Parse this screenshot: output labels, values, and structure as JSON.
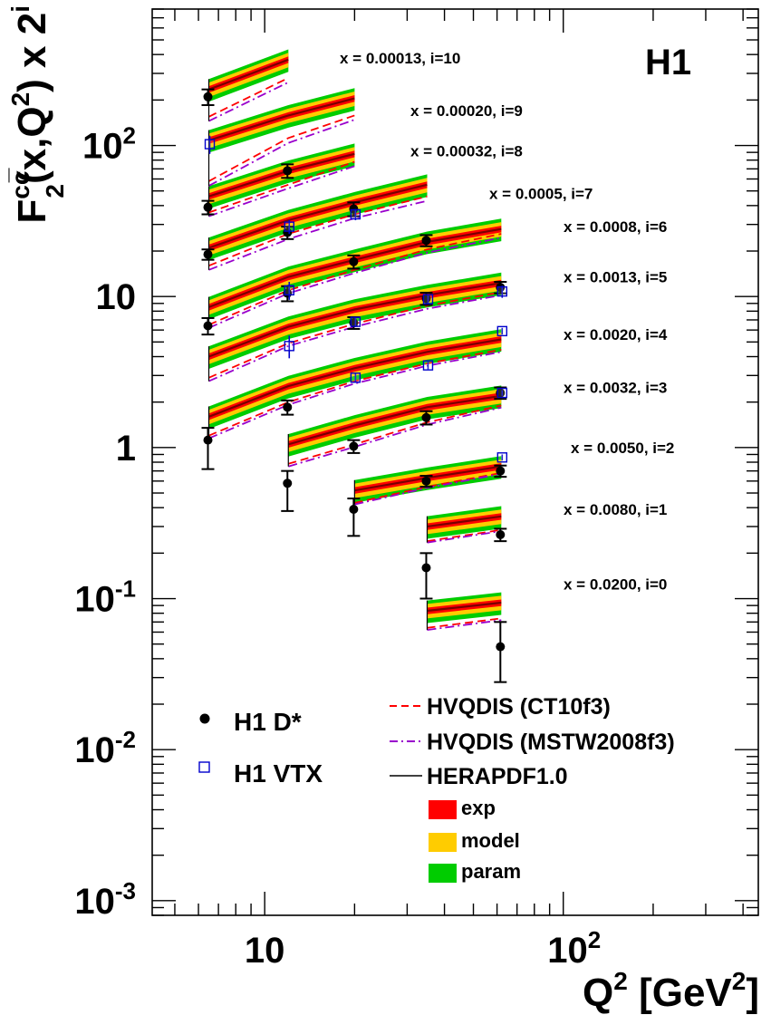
{
  "chart_data": {
    "type": "scatter",
    "label": "H1",
    "ylabel": {
      "main": "F",
      "sup": "cc̅",
      "sub": "2",
      "rest": "(x,Q",
      "sup2": "2",
      "rest2": ") x 2",
      "sup3": "i"
    },
    "xlabel": {
      "main": "Q",
      "sup": "2",
      "rest": " [GeV",
      "sup2": "2",
      "rest2": "]"
    },
    "xscale": "log",
    "yscale": "log",
    "xlim": [
      4.2,
      450
    ],
    "ylim": [
      0.0008,
      800
    ],
    "x_tick_labels": [
      {
        "value": 10,
        "base": "10",
        "exp": ""
      },
      {
        "value": 100,
        "base": "10",
        "exp": "2"
      }
    ],
    "y_tick_labels": [
      {
        "value": 0.001,
        "base": "10",
        "exp": "-3"
      },
      {
        "value": 0.01,
        "base": "10",
        "exp": "-2"
      },
      {
        "value": 0.1,
        "base": "10",
        "exp": "-1"
      },
      {
        "value": 1,
        "base": "1",
        "exp": ""
      },
      {
        "value": 10,
        "base": "10",
        "exp": ""
      },
      {
        "value": 100,
        "base": "10",
        "exp": "2"
      }
    ],
    "bins": [
      {
        "label": "x = 0.00013, i=10",
        "label_y": 380,
        "q2": [
          6.5,
          12
        ],
        "central": [
          235,
          370
        ],
        "exp_frac": 0.05,
        "model_frac": 0.11,
        "param_frac": 0.17,
        "ct10": [
          155,
          280
        ],
        "mstw": [
          145,
          262
        ]
      },
      {
        "label": "x = 0.00020, i=9",
        "label_y": 170,
        "q2": [
          6.5,
          12,
          20
        ],
        "central": [
          108,
          158,
          205
        ],
        "exp_frac": 0.05,
        "model_frac": 0.11,
        "param_frac": 0.17,
        "ct10": [
          58,
          112,
          158
        ],
        "mstw": [
          54,
          104,
          148
        ]
      },
      {
        "label": "x = 0.00032, i=8",
        "label_y": 92,
        "q2": [
          6.5,
          12,
          20
        ],
        "central": [
          46,
          68,
          88
        ],
        "exp_frac": 0.05,
        "model_frac": 0.11,
        "param_frac": 0.17,
        "ct10": [
          36,
          55,
          78
        ],
        "mstw": [
          34,
          52,
          73
        ]
      },
      {
        "label": "x = 0.0005, i=7",
        "label_y": 48,
        "q2": [
          6.5,
          12,
          20,
          35
        ],
        "central": [
          21,
          32,
          42,
          55
        ],
        "exp_frac": 0.05,
        "model_frac": 0.11,
        "param_frac": 0.17,
        "ct10": [
          16,
          26,
          35,
          46
        ],
        "mstw": [
          15,
          24,
          33,
          43
        ]
      },
      {
        "label": "x = 0.0008, i=6",
        "label_y": 29,
        "q2": [
          6.5,
          12,
          20,
          35,
          62
        ],
        "central": [
          8.5,
          13.5,
          17.5,
          23,
          28
        ],
        "exp_frac": 0.05,
        "model_frac": 0.11,
        "param_frac": 0.17,
        "ct10": [
          6.5,
          11,
          15,
          20.5,
          26
        ],
        "mstw": [
          6.2,
          10.5,
          14.3,
          19.5,
          24.5
        ]
      },
      {
        "label": "x = 0.0013, i=5",
        "label_y": 13.5,
        "q2": [
          6.5,
          12,
          20,
          35,
          62
        ],
        "central": [
          4.0,
          6.3,
          8.2,
          10.2,
          12.3
        ],
        "exp_frac": 0.05,
        "model_frac": 0.11,
        "param_frac": 0.17,
        "ct10": [
          2.9,
          4.9,
          6.6,
          8.7,
          10.7
        ],
        "mstw": [
          2.75,
          4.7,
          6.3,
          8.3,
          10.2
        ]
      },
      {
        "label": "x = 0.0020, i=4",
        "label_y": 5.6,
        "q2": [
          6.5,
          12,
          20,
          35,
          62
        ],
        "central": [
          1.6,
          2.55,
          3.35,
          4.3,
          5.2
        ],
        "exp_frac": 0.05,
        "model_frac": 0.11,
        "param_frac": 0.17,
        "ct10": [
          1.2,
          2.0,
          2.75,
          3.6,
          4.45
        ],
        "mstw": [
          1.15,
          1.92,
          2.65,
          3.48,
          4.3
        ]
      },
      {
        "label": "x = 0.0032, i=3",
        "label_y": 2.5,
        "q2": [
          12,
          20,
          35,
          62
        ],
        "central": [
          1.05,
          1.4,
          1.85,
          2.2
        ],
        "exp_frac": 0.05,
        "model_frac": 0.11,
        "param_frac": 0.17,
        "ct10": [
          0.78,
          1.05,
          1.47,
          1.9
        ],
        "mstw": [
          0.75,
          1.01,
          1.42,
          1.84
        ]
      },
      {
        "label": "x = 0.0050, i=2",
        "label_y": 1.0,
        "q2": [
          20,
          35,
          62
        ],
        "central": [
          0.52,
          0.63,
          0.75
        ],
        "exp_frac": 0.05,
        "model_frac": 0.11,
        "param_frac": 0.17,
        "ct10": [
          0.43,
          0.55,
          0.68
        ],
        "mstw": [
          0.42,
          0.54,
          0.67
        ]
      },
      {
        "label": "x = 0.0080, i=1",
        "label_y": 0.39,
        "q2": [
          35,
          62
        ],
        "central": [
          0.3,
          0.35
        ],
        "exp_frac": 0.05,
        "model_frac": 0.11,
        "param_frac": 0.17,
        "ct10": [
          0.24,
          0.285
        ],
        "mstw": [
          0.235,
          0.28
        ]
      },
      {
        "label": "x = 0.0200, i=0",
        "label_y": 0.125,
        "q2": [
          35,
          62
        ],
        "central": [
          0.083,
          0.094
        ],
        "exp_frac": 0.05,
        "model_frac": 0.11,
        "param_frac": 0.17,
        "ct10": [
          0.064,
          0.074
        ],
        "mstw": [
          0.062,
          0.072
        ]
      }
    ],
    "h1_dstar": [
      {
        "x": 6.5,
        "y": 210,
        "lo": 185,
        "hi": 235
      },
      {
        "x": 6.5,
        "y": 39,
        "lo": 35,
        "hi": 43
      },
      {
        "x": 12,
        "y": 68,
        "lo": 61,
        "hi": 75
      },
      {
        "x": 6.5,
        "y": 19,
        "lo": 17.5,
        "hi": 20.5
      },
      {
        "x": 12,
        "y": 26.5,
        "lo": 24,
        "hi": 29
      },
      {
        "x": 20,
        "y": 38,
        "lo": 34,
        "hi": 42
      },
      {
        "x": 6.5,
        "y": 6.4,
        "lo": 5.6,
        "hi": 7.2
      },
      {
        "x": 12,
        "y": 10.5,
        "lo": 9.3,
        "hi": 11.7
      },
      {
        "x": 20,
        "y": 17,
        "lo": 15.3,
        "hi": 18.7
      },
      {
        "x": 35,
        "y": 23.5,
        "lo": 21.5,
        "hi": 25.5
      },
      {
        "x": 62,
        "y": 11.5,
        "lo": 10.5,
        "hi": 12.5
      },
      {
        "x": 12,
        "y": 1.85,
        "lo": 1.65,
        "hi": 2.05
      },
      {
        "x": 20,
        "y": 6.7,
        "lo": 6.1,
        "hi": 7.3
      },
      {
        "x": 35,
        "y": 9.7,
        "lo": 8.8,
        "hi": 10.6
      },
      {
        "x": 62,
        "y": 2.3,
        "lo": 2.1,
        "hi": 2.5
      },
      {
        "x": 6.5,
        "y": 1.12,
        "lo": 0.72,
        "hi": 1.35
      },
      {
        "x": 12,
        "y": 0.58,
        "lo": 0.38,
        "hi": 0.7
      },
      {
        "x": 20,
        "y": 1.02,
        "lo": 0.92,
        "hi": 1.12
      },
      {
        "x": 35,
        "y": 1.58,
        "lo": 1.42,
        "hi": 1.74
      },
      {
        "x": 20,
        "y": 0.39,
        "lo": 0.26,
        "hi": 0.46
      },
      {
        "x": 35,
        "y": 0.6,
        "lo": 0.55,
        "hi": 0.65
      },
      {
        "x": 62,
        "y": 0.7,
        "lo": 0.64,
        "hi": 0.76
      },
      {
        "x": 35,
        "y": 0.16,
        "lo": 0.1,
        "hi": 0.2
      },
      {
        "x": 62,
        "y": 0.265,
        "lo": 0.24,
        "hi": 0.29
      },
      {
        "x": 62,
        "y": 0.048,
        "lo": 0.028,
        "hi": 0.07
      }
    ],
    "h1_vtx": [
      {
        "x": 6.5,
        "y": 102,
        "lo": 88,
        "hi": 116
      },
      {
        "x": 12,
        "y": 29,
        "lo": 26,
        "hi": 32
      },
      {
        "x": 20,
        "y": 35,
        "lo": 32,
        "hi": 38
      },
      {
        "x": 12,
        "y": 11,
        "lo": 9.5,
        "hi": 12.5
      },
      {
        "x": 62,
        "y": 10.8,
        "lo": 9.8,
        "hi": 11.8
      },
      {
        "x": 12,
        "y": 4.7,
        "lo": 3.9,
        "hi": 5.5
      },
      {
        "x": 20,
        "y": 6.8,
        "lo": 6.3,
        "hi": 7.3
      },
      {
        "x": 35,
        "y": 9.6,
        "lo": 9.0,
        "hi": 10.2
      },
      {
        "x": 62,
        "y": 5.9,
        "lo": 5.6,
        "hi": 6.2
      },
      {
        "x": 20,
        "y": 2.9,
        "lo": 2.7,
        "hi": 3.1
      },
      {
        "x": 35,
        "y": 3.5,
        "lo": 3.3,
        "hi": 3.7
      },
      {
        "x": 62,
        "y": 2.3,
        "lo": 2.2,
        "hi": 2.4
      },
      {
        "x": 62,
        "y": 0.86,
        "lo": 0.82,
        "hi": 0.9
      }
    ],
    "legend": {
      "dstar": "H1 D*",
      "vtx": "H1 VTX",
      "ct10": "HVQDIS (CT10f3)",
      "mstw": "HVQDIS (MSTW2008f3)",
      "hera": "HERAPDF1.0",
      "exp": "exp",
      "model": "model",
      "param": "param"
    },
    "colors": {
      "exp": "#ff0000",
      "model": "#ffcc00",
      "param": "#00cc00",
      "central": "#000000",
      "ct10": "#ff0000",
      "mstw": "#9900cc",
      "vtx": "#0000cc",
      "dstar": "#000000"
    }
  }
}
